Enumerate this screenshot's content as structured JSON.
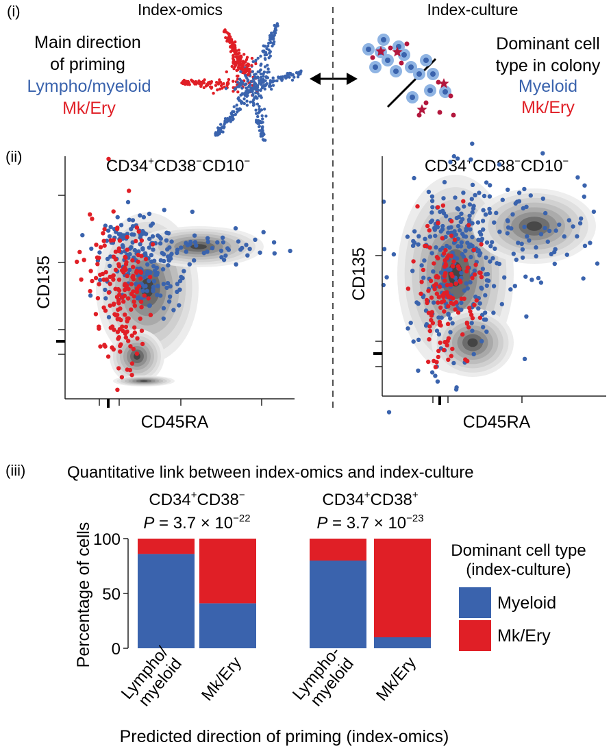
{
  "colors": {
    "blue": "#3a63ad",
    "red": "#e01f26",
    "light_blue": "#8fb4e3",
    "dark_red": "#b3173d",
    "text": "#1a1a1a"
  },
  "panel_i": {
    "label": "(i)",
    "left_title": "Index-omics",
    "right_title": "Index-culture",
    "left_legend": {
      "line1": "Main direction",
      "line2": "of priming",
      "blue": "Lympho/myeloid",
      "red": "Mk/Ery"
    },
    "right_legend": {
      "line1": "Dominant cell",
      "line2": "type in colony",
      "blue": "Myeloid",
      "red": "Mk/Ery"
    }
  },
  "panel_ii": {
    "label": "(ii)",
    "plots": [
      {
        "title_base": "CD34",
        "s1": "+",
        "mid1": "CD38",
        "s2": "−",
        "mid2": "CD10",
        "s3": "−",
        "xlabel": "CD45RA",
        "ylabel": "CD135"
      },
      {
        "title_base": "CD34",
        "s1": "+",
        "mid1": "CD38",
        "s2": "−",
        "mid2": "CD10",
        "s3": "−",
        "xlabel": "CD45RA",
        "ylabel": "CD135"
      }
    ]
  },
  "panel_iii": {
    "label": "(iii)",
    "title": "Quantitative link between index-omics and index-culture",
    "ylabel": "Percentage of cells",
    "xlabel": "Predicted direction of priming (index-omics)",
    "legend_title1": "Dominant cell type",
    "legend_title2": "(index-culture)",
    "legend_items": [
      "Myeloid",
      "Mk/Ery"
    ]
  },
  "chart_data": {
    "type": "bar",
    "stacked": true,
    "ylabel": "Percentage of cells",
    "xlabel": "Predicted direction of priming (index-omics)",
    "ylim": [
      0,
      100
    ],
    "yticks": [
      0,
      50,
      100
    ],
    "groups": [
      {
        "title_base": "CD34",
        "s1": "+",
        "mid": "CD38",
        "s2": "−",
        "p_prefix": "P",
        "p_value": " = 3.7 × 10",
        "p_exp": "−22",
        "categories": [
          [
            "Lympho/",
            "myeloid"
          ],
          [
            "Mk/Ery"
          ]
        ],
        "series": [
          {
            "name": "Myeloid",
            "values": [
              86,
              41
            ]
          },
          {
            "name": "Mk/Ery",
            "values": [
              14,
              59
            ]
          }
        ]
      },
      {
        "title_base": "CD34",
        "s1": "+",
        "mid": "CD38",
        "s2": "+",
        "p_prefix": "P",
        "p_value": " = 3.7 × 10",
        "p_exp": "−23",
        "categories": [
          [
            "Lympho-",
            "myeloid"
          ],
          [
            "Mk/Ery"
          ]
        ],
        "series": [
          {
            "name": "Myeloid",
            "values": [
              80,
              10
            ]
          },
          {
            "name": "Mk/Ery",
            "values": [
              20,
              90
            ]
          }
        ]
      }
    ]
  }
}
